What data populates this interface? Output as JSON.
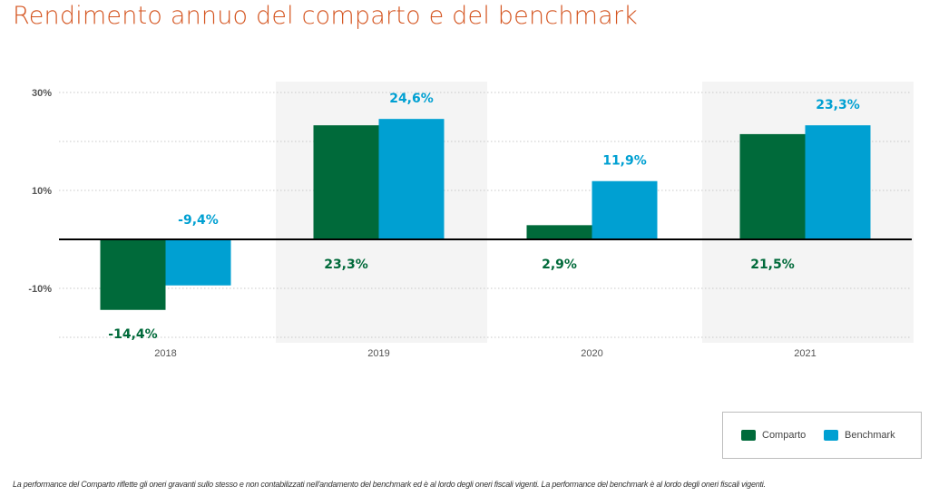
{
  "title": "Rendimento annuo del comparto e del benchmark",
  "chart_data": {
    "type": "bar",
    "title": "Rendimento annuo del comparto e del benchmark",
    "xlabel": "",
    "ylabel": "",
    "categories": [
      "2018",
      "2019",
      "2020",
      "2021"
    ],
    "series": [
      {
        "name": "Comparto",
        "color": "#006a3a",
        "values": [
          -14.4,
          23.3,
          2.9,
          21.5
        ],
        "labels": [
          "-14,4%",
          "23,3%",
          "2,9%",
          "21,5%"
        ]
      },
      {
        "name": "Benchmark",
        "color": "#00a0d2",
        "values": [
          -9.4,
          24.6,
          11.9,
          23.3
        ],
        "labels": [
          "-9,4%",
          "24,6%",
          "11,9%",
          "23,3%"
        ]
      }
    ],
    "ylim": [
      -20,
      30
    ],
    "gridlines": [
      30,
      20,
      10,
      0,
      -10,
      -20
    ],
    "yticks": [
      30,
      10,
      -10
    ],
    "ytick_labels": [
      "30%",
      "10%",
      "-10%"
    ],
    "grid": true,
    "shaded_categories": [
      "2019",
      "2021"
    ],
    "legend": {
      "position": "bottom-right",
      "entries": [
        "Comparto",
        "Benchmark"
      ]
    }
  },
  "legend": {
    "comparto": "Comparto",
    "benchmark": "Benchmark",
    "comparto_color": "#006a3a",
    "benchmark_color": "#00a0d2"
  },
  "footnote": "La performance del Comparto riflette gli oneri gravanti sullo stesso e non contabilizzati nell'andamento del benchmark ed è al lordo degli oneri fiscali vigenti. La performance del benchmark è al lordo degli oneri fiscali vigenti."
}
